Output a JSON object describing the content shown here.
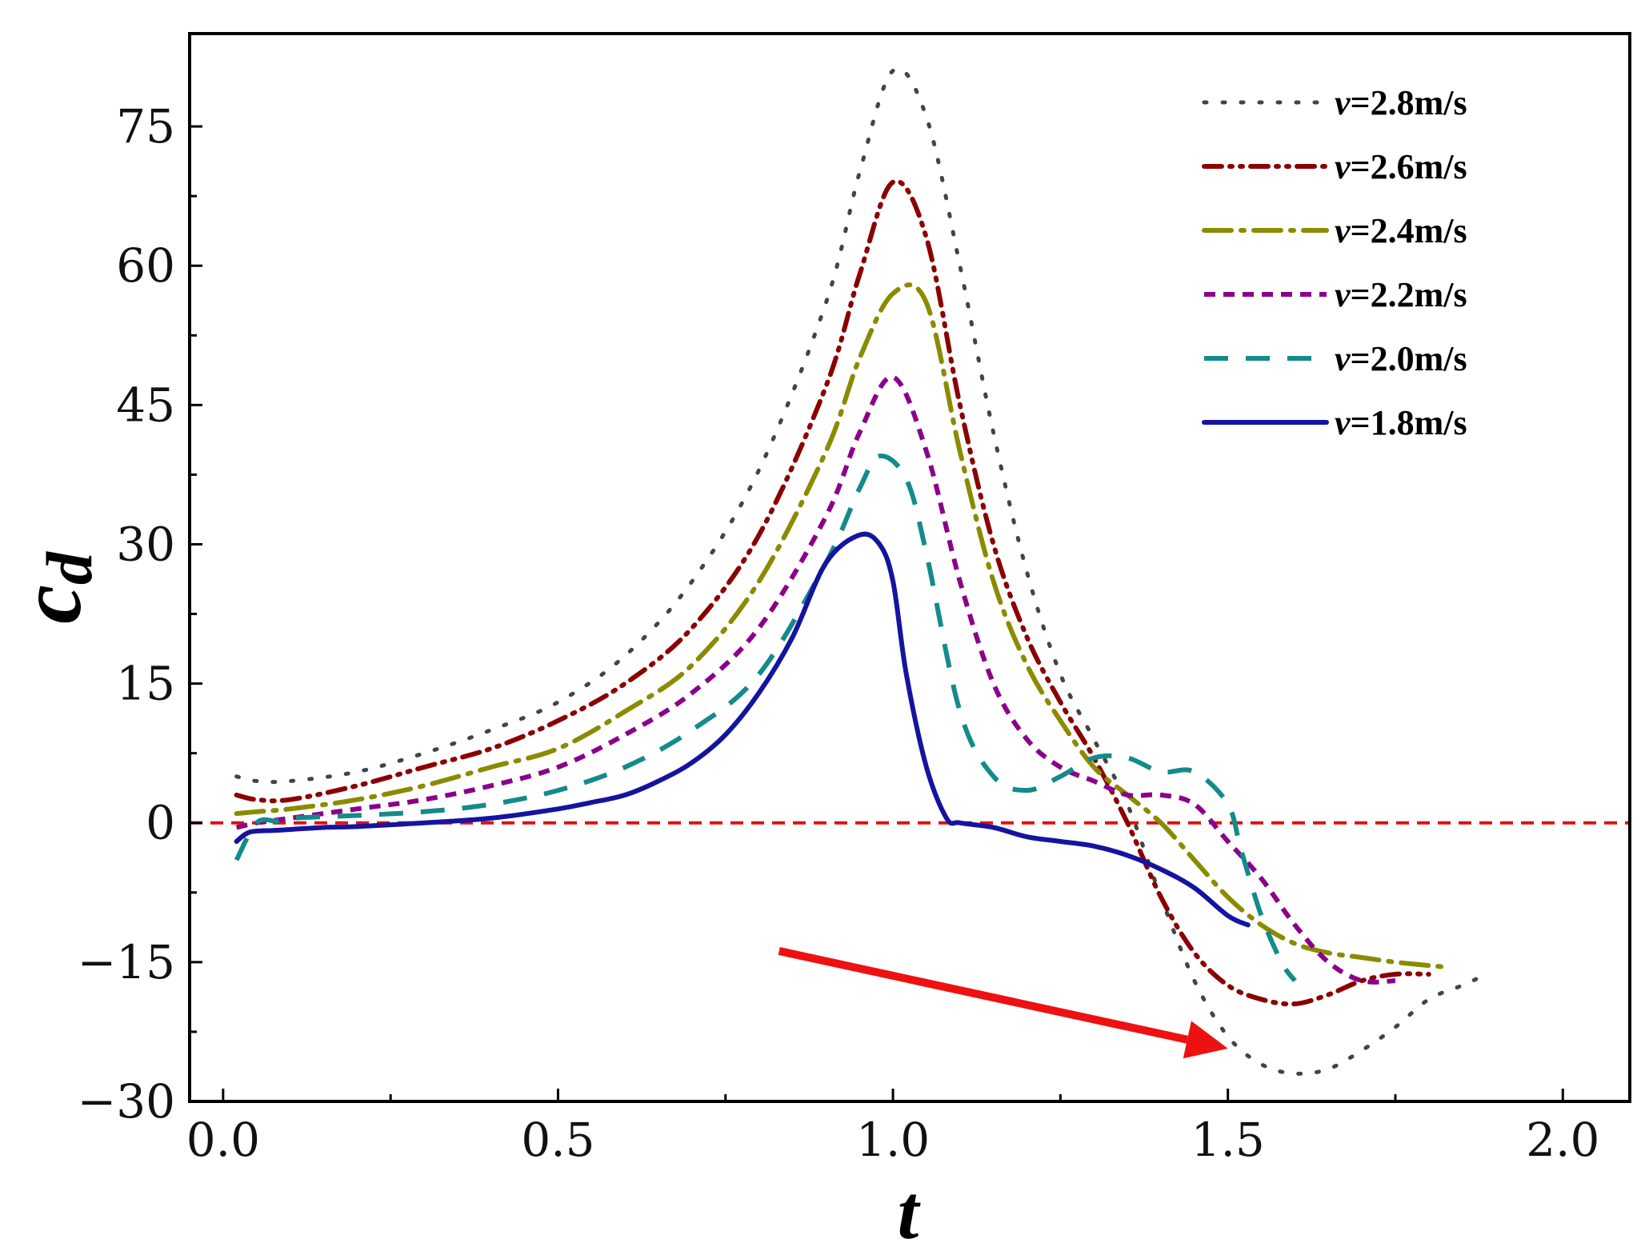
{
  "chart_data": {
    "type": "line",
    "title": "",
    "xlabel": "t",
    "ylabel": "c",
    "ylabel_subscript": "d",
    "xlim": [
      -0.05,
      2.1
    ],
    "ylim": [
      -30,
      85
    ],
    "xticks": [
      0.0,
      0.5,
      1.0,
      1.5,
      2.0
    ],
    "xtick_labels": [
      "0.0",
      "0.5",
      "1.0",
      "1.5",
      "2.0"
    ],
    "yticks": [
      -30,
      -15,
      0,
      15,
      30,
      45,
      60,
      75
    ],
    "ytick_labels": [
      "−30",
      "−15",
      "0",
      "15",
      "30",
      "45",
      "60",
      "75"
    ],
    "legend_position": "top-right",
    "reference_line": {
      "y": 0,
      "color": "#e01010",
      "style": "dashed"
    },
    "annotation": {
      "type": "arrow",
      "color": "#ee1111",
      "from": [
        0.83,
        -13.8
      ],
      "to": [
        1.5,
        -24.3
      ]
    },
    "series": [
      {
        "name": "v=2.8m/s",
        "prefix": "v",
        "suffix": "=2.8m/s",
        "color": "#444444",
        "dash": "dot",
        "x": [
          0.02,
          0.05,
          0.1,
          0.2,
          0.3,
          0.4,
          0.5,
          0.6,
          0.7,
          0.8,
          0.9,
          0.95,
          1.0,
          1.05,
          1.1,
          1.15,
          1.2,
          1.25,
          1.3,
          1.35,
          1.4,
          1.45,
          1.5,
          1.55,
          1.6,
          1.65,
          1.7,
          1.75,
          1.8,
          1.85,
          1.88
        ],
        "y": [
          5,
          4.5,
          4.5,
          5.5,
          7.5,
          10,
          13,
          18,
          26,
          38,
          56,
          70,
          81,
          76,
          60,
          42,
          27,
          16,
          9,
          2,
          -8,
          -17,
          -23,
          -26,
          -27,
          -26.5,
          -24.5,
          -22,
          -19,
          -17.5,
          -16.5
        ]
      },
      {
        "name": "v=2.6m/s",
        "prefix": "v",
        "suffix": "=2.6m/s",
        "color": "#8b0000",
        "dash": "dashdotdot",
        "x": [
          0.02,
          0.05,
          0.1,
          0.2,
          0.3,
          0.4,
          0.5,
          0.6,
          0.7,
          0.8,
          0.9,
          0.95,
          1.0,
          1.05,
          1.1,
          1.15,
          1.2,
          1.25,
          1.3,
          1.35,
          1.4,
          1.45,
          1.5,
          1.55,
          1.6,
          1.65,
          1.7,
          1.75,
          1.8
        ],
        "y": [
          3,
          2.5,
          2.5,
          4,
          6,
          8,
          11,
          15,
          21,
          31,
          47,
          59,
          69,
          63,
          45,
          30,
          20,
          13,
          7,
          0,
          -8,
          -14,
          -17.5,
          -19,
          -19.5,
          -18.5,
          -17,
          -16.3,
          -16.3
        ]
      },
      {
        "name": "v=2.4m/s",
        "prefix": "v",
        "suffix": "=2.4m/s",
        "color": "#8b8b00",
        "dash": "dashdot",
        "x": [
          0.02,
          0.05,
          0.1,
          0.2,
          0.3,
          0.4,
          0.5,
          0.6,
          0.7,
          0.8,
          0.9,
          0.95,
          1.0,
          1.05,
          1.1,
          1.15,
          1.2,
          1.25,
          1.3,
          1.35,
          1.4,
          1.45,
          1.5,
          1.55,
          1.6,
          1.65,
          1.7,
          1.75,
          1.82
        ],
        "y": [
          1,
          1.2,
          1.5,
          2.5,
          4,
          6,
          8,
          12,
          17,
          26,
          40,
          50,
          57,
          56,
          40,
          26,
          17,
          11,
          6,
          3,
          0,
          -4,
          -8,
          -11,
          -13,
          -14,
          -14.5,
          -15,
          -15.5
        ]
      },
      {
        "name": "v=2.2m/s",
        "prefix": "v",
        "suffix": "=2.2m/s",
        "color": "#8b008b",
        "dash": "shortdash",
        "x": [
          0.02,
          0.05,
          0.1,
          0.2,
          0.3,
          0.4,
          0.5,
          0.6,
          0.7,
          0.8,
          0.9,
          0.95,
          1.0,
          1.05,
          1.1,
          1.15,
          1.2,
          1.25,
          1.3,
          1.35,
          1.4,
          1.45,
          1.5,
          1.55,
          1.6,
          1.65,
          1.7,
          1.75
        ],
        "y": [
          -0.5,
          0,
          0.5,
          1.5,
          2.5,
          4,
          6,
          9.5,
          14,
          21,
          33,
          42,
          48,
          40,
          26,
          15,
          9,
          6,
          4.5,
          3,
          3,
          2,
          -2,
          -6,
          -11,
          -15,
          -17,
          -17
        ]
      },
      {
        "name": "v=2.0m/s",
        "prefix": "v",
        "suffix": "=2.0m/s",
        "color": "#138b8b",
        "dash": "longdash",
        "x": [
          0.02,
          0.05,
          0.08,
          0.1,
          0.2,
          0.3,
          0.4,
          0.5,
          0.6,
          0.7,
          0.8,
          0.9,
          0.95,
          0.98,
          1.02,
          1.05,
          1.1,
          1.15,
          1.2,
          1.25,
          1.3,
          1.35,
          1.4,
          1.45,
          1.5,
          1.52,
          1.55,
          1.58,
          1.6
        ],
        "y": [
          -4,
          0,
          0.2,
          0.5,
          0.8,
          1.2,
          2,
          3.5,
          6,
          10,
          16,
          28,
          36,
          39.5,
          37,
          29,
          12,
          5,
          3.5,
          5,
          7,
          7,
          5.5,
          5.5,
          2,
          -3,
          -10,
          -15,
          -17
        ]
      },
      {
        "name": "v=1.8m/s",
        "prefix": "v",
        "suffix": "=1.8m/s",
        "color": "#1414a0",
        "dash": "solid",
        "x": [
          0.02,
          0.04,
          0.08,
          0.15,
          0.2,
          0.3,
          0.4,
          0.5,
          0.55,
          0.6,
          0.65,
          0.7,
          0.75,
          0.8,
          0.85,
          0.9,
          0.95,
          0.98,
          1.0,
          1.02,
          1.05,
          1.08,
          1.1,
          1.15,
          1.2,
          1.25,
          1.3,
          1.35,
          1.4,
          1.45,
          1.5,
          1.53
        ],
        "y": [
          -2,
          -1,
          -0.8,
          -0.5,
          -0.4,
          0,
          0.5,
          1.5,
          2.2,
          3,
          4.5,
          6.5,
          9.5,
          14,
          20,
          28,
          31,
          30,
          26,
          16,
          6,
          0.5,
          0,
          -0.5,
          -1.5,
          -2,
          -2.5,
          -3.5,
          -5,
          -7,
          -10,
          -11
        ]
      }
    ]
  }
}
